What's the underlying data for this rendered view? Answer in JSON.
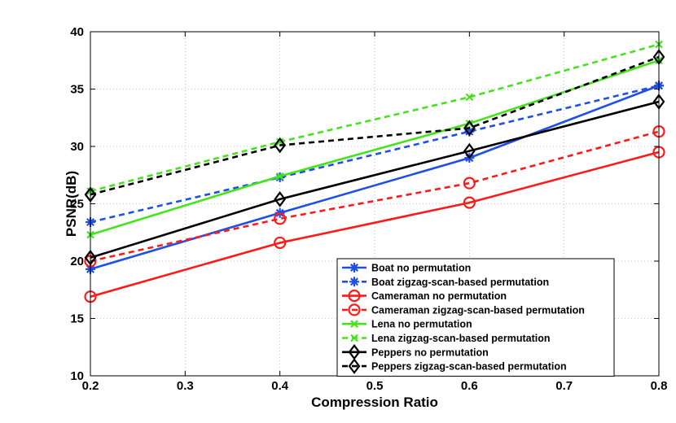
{
  "chart_data": {
    "type": "line",
    "xlabel": "Compression Ratio",
    "ylabel": "PSNR(dB)",
    "xlim": [
      0.2,
      0.8
    ],
    "ylim": [
      10,
      40
    ],
    "x_ticks": [
      "0.2",
      "0.3",
      "0.4",
      "0.5",
      "0.6",
      "0.7",
      "0.8"
    ],
    "y_ticks": [
      "10",
      "15",
      "20",
      "25",
      "30",
      "35",
      "40"
    ],
    "grid": true,
    "legend_position": "bottom-right",
    "x": [
      0.2,
      0.4,
      0.6,
      0.8
    ],
    "series": [
      {
        "name": "Boat no permutation",
        "values": [
          19.3,
          24.2,
          29.0,
          35.3
        ],
        "color": "#1f4fe6",
        "dash": "solid",
        "marker": "asterisk"
      },
      {
        "name": "Boat zigzag-scan-based permutation",
        "values": [
          23.4,
          27.3,
          31.3,
          35.3
        ],
        "color": "#1f4fe6",
        "dash": "dashed",
        "marker": "asterisk"
      },
      {
        "name": "Cameraman no permutation",
        "values": [
          16.9,
          21.6,
          25.1,
          29.5
        ],
        "color": "#ff1a1a",
        "dash": "solid",
        "marker": "circle"
      },
      {
        "name": "Cameraman zigzag-scan-based permutation",
        "values": [
          20.0,
          23.7,
          26.8,
          31.3
        ],
        "color": "#ff1a1a",
        "dash": "dashed",
        "marker": "circle"
      },
      {
        "name": "Lena no permutation",
        "values": [
          22.3,
          27.4,
          32.0,
          37.5
        ],
        "color": "#44e41c",
        "dash": "solid",
        "marker": "x"
      },
      {
        "name": "Lena zigzag-scan-based permutation",
        "values": [
          26.1,
          30.4,
          34.3,
          38.9
        ],
        "color": "#44e41c",
        "dash": "dashed",
        "marker": "x"
      },
      {
        "name": "Peppers no permutation",
        "values": [
          20.3,
          25.4,
          29.6,
          33.9
        ],
        "color": "#000000",
        "dash": "solid",
        "marker": "diamond"
      },
      {
        "name": "Peppers zigzag-scan-based permutation",
        "values": [
          25.8,
          30.1,
          31.6,
          37.8
        ],
        "color": "#000000",
        "dash": "dashed",
        "marker": "diamond"
      }
    ]
  }
}
